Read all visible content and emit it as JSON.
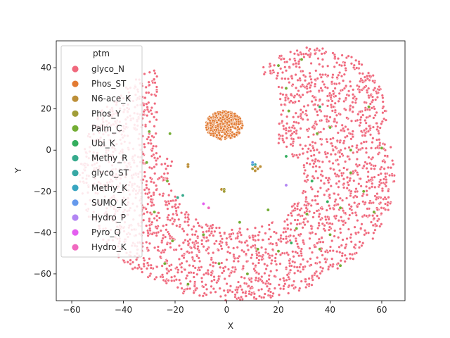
{
  "chart_data": {
    "type": "scatter",
    "xlabel": "X",
    "ylabel": "Y",
    "xlim": [
      -66,
      69
    ],
    "ylim": [
      -73,
      53
    ],
    "xticks": [
      -60,
      -40,
      -20,
      0,
      20,
      40,
      60
    ],
    "yticks": [
      -60,
      -40,
      -20,
      0,
      20,
      40
    ],
    "grid": false,
    "legend": {
      "title": "ptm",
      "placement": "upper-left",
      "entries": [
        {
          "name": "glyco_N",
          "color": "#f0697d"
        },
        {
          "name": "Phos_ST",
          "color": "#e27b33"
        },
        {
          "name": "N6-ace_K",
          "color": "#bc8f38"
        },
        {
          "name": "Phos_Y",
          "color": "#a19d38"
        },
        {
          "name": "Palm_C",
          "color": "#73ad34"
        },
        {
          "name": "Ubi_K",
          "color": "#33ae5d"
        },
        {
          "name": "Methy_R",
          "color": "#36aa8c"
        },
        {
          "name": "glyco_ST",
          "color": "#37a8a4"
        },
        {
          "name": "Methy_K",
          "color": "#38a5c0"
        },
        {
          "name": "SUMO_K",
          "color": "#6599ec"
        },
        {
          "name": "Hydro_P",
          "color": "#b285f3"
        },
        {
          "name": "Pyro_Q",
          "color": "#e45ef0"
        },
        {
          "name": "Hydro_K",
          "color": "#f069c0"
        }
      ]
    },
    "series": [
      {
        "name": "glyco_N",
        "shape": "ring",
        "center": [
          4,
          -12
        ],
        "r_outer": 61,
        "r_inner": 26,
        "density": 1.0
      },
      {
        "name": "glyco_N",
        "shape": "arm",
        "x": [
          -27,
          36
        ],
        "y": [
          -12,
          48
        ]
      },
      {
        "name": "Phos_ST",
        "shape": "disk",
        "center": [
          -1,
          12
        ],
        "radius": 7
      },
      {
        "name": "N6-ace_K",
        "points": [
          [
            11,
            -8
          ],
          [
            12,
            -9
          ],
          [
            10,
            -7
          ],
          [
            13,
            -8
          ],
          [
            11,
            -10
          ],
          [
            -15,
            -7
          ],
          [
            -15,
            -8
          ],
          [
            -1,
            -20
          ],
          [
            -2,
            -19
          ]
        ]
      },
      {
        "name": "Phos_Y",
        "points": [
          [
            -1,
            -19
          ],
          [
            -1,
            -20
          ],
          [
            10,
            -9
          ]
        ]
      },
      {
        "name": "Palm_C",
        "points": [
          [
            -30,
            9
          ],
          [
            -22,
            8
          ],
          [
            -23,
            -15
          ],
          [
            -31,
            -6
          ],
          [
            20,
            41
          ],
          [
            29,
            44
          ],
          [
            23,
            30
          ],
          [
            24,
            19
          ],
          [
            35,
            8
          ],
          [
            40,
            11
          ],
          [
            48,
            0
          ],
          [
            55,
            21
          ],
          [
            60,
            1
          ],
          [
            48,
            -11
          ],
          [
            53,
            -20
          ],
          [
            44,
            -28
          ],
          [
            31,
            -31
          ],
          [
            27,
            -38
          ],
          [
            16,
            -29
          ],
          [
            20,
            -49
          ],
          [
            8,
            -60
          ],
          [
            -3,
            -55
          ],
          [
            -15,
            -65
          ],
          [
            -24,
            -55
          ],
          [
            -28,
            -30
          ],
          [
            -21,
            -44
          ],
          [
            -9,
            -41
          ],
          [
            5,
            -35
          ],
          [
            12,
            -48
          ],
          [
            36,
            -48
          ],
          [
            40,
            -41
          ],
          [
            44,
            -56
          ],
          [
            57,
            -30
          ]
        ]
      },
      {
        "name": "Ubi_K",
        "points": [
          [
            36,
            21
          ],
          [
            23,
            -3
          ],
          [
            33,
            -15
          ],
          [
            39,
            -25
          ],
          [
            25,
            -45
          ]
        ]
      },
      {
        "name": "Methy_R",
        "points": [
          [
            -17,
            -22
          ],
          [
            -19,
            -23
          ]
        ]
      },
      {
        "name": "glyco_ST",
        "points": [
          [
            11,
            -7
          ]
        ]
      },
      {
        "name": "Methy_K",
        "points": [
          [
            10,
            -7
          ]
        ]
      },
      {
        "name": "SUMO_K",
        "points": [
          [
            10,
            -6
          ]
        ]
      },
      {
        "name": "Hydro_P",
        "points": [
          [
            23,
            -17
          ]
        ]
      },
      {
        "name": "Pyro_Q",
        "points": [
          [
            -9,
            -26
          ]
        ]
      },
      {
        "name": "Hydro_K",
        "points": [
          [
            -7,
            -28
          ]
        ]
      }
    ]
  }
}
